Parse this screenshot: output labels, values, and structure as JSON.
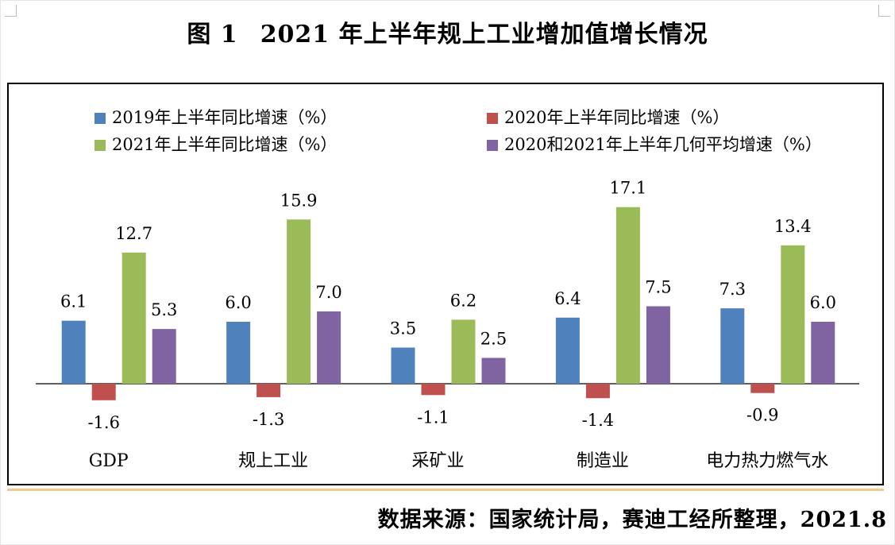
{
  "title": {
    "figure_number": "图 1",
    "text": "2021 年上半年规上工业增加值增长情况"
  },
  "source": "数据来源：国家统计局，赛迪工经所整理，2021.8",
  "chart_data": {
    "type": "bar",
    "categories": [
      "GDP",
      "规上工业",
      "采矿业",
      "制造业",
      "电力热力燃气水"
    ],
    "series": [
      {
        "name": "2019年上半年同比增速（%）",
        "color": "#4f81bd",
        "values": [
          6.1,
          6.0,
          3.5,
          6.4,
          7.3
        ]
      },
      {
        "name": "2020年上半年同比增速（%）",
        "color": "#c0504d",
        "values": [
          -1.6,
          -1.3,
          -1.1,
          -1.4,
          -0.9
        ]
      },
      {
        "name": "2021年上半年同比增速（%）",
        "color": "#9bbb59",
        "values": [
          12.7,
          15.9,
          6.2,
          17.1,
          13.4
        ]
      },
      {
        "name": "2020和2021年上半年几何平均增速（%）",
        "color": "#8064a2",
        "values": [
          5.3,
          7.0,
          2.5,
          7.5,
          6.0
        ]
      }
    ],
    "data_labels": true,
    "grid": false,
    "legend": "top"
  }
}
